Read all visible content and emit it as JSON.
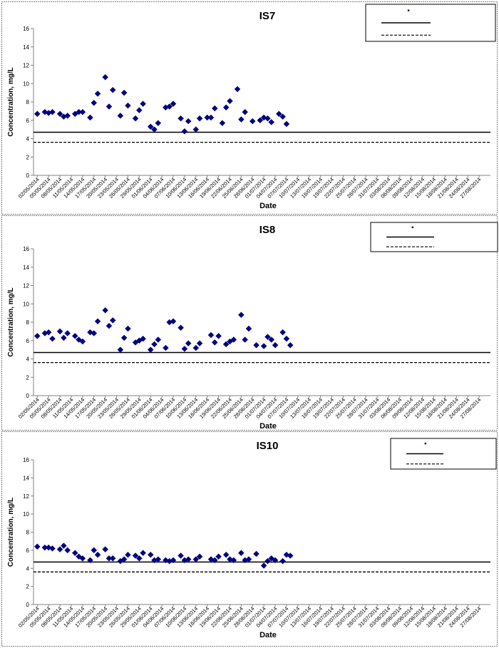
{
  "colors": {
    "marker": "#000080",
    "axis": "#808080",
    "reference_line": "#000000",
    "panel_border": "#000000"
  },
  "chart_data": [
    {
      "type": "scatter",
      "title": "IS7",
      "xlabel": "Date",
      "ylabel": "Concentration, mg/L",
      "ylim": [
        0,
        16
      ],
      "yticks": [
        0,
        2,
        4,
        6,
        8,
        10,
        12,
        14,
        16
      ],
      "xlim": [
        "2014-05-01",
        "2014-08-30"
      ],
      "xtick_labels": [
        "02/05/2014",
        "05/05/2014",
        "08/05/2014",
        "11/05/2014",
        "14/05/2014",
        "17/05/2014",
        "20/05/2014",
        "23/05/2014",
        "26/05/2014",
        "29/05/2014",
        "01/06/2014",
        "04/06/2014",
        "07/06/2014",
        "10/06/2014",
        "13/06/2014",
        "16/06/2014",
        "19/06/2014",
        "22/06/2014",
        "25/06/2014",
        "28/06/2014",
        "01/07/2014",
        "04/07/2014",
        "07/07/2014",
        "10/07/2014",
        "13/07/2014",
        "16/07/2014",
        "19/07/2014",
        "22/07/2014",
        "25/07/2014",
        "28/07/2014",
        "31/07/2014",
        "03/08/2014",
        "06/08/2014",
        "09/08/2014",
        "12/08/2014",
        "15/08/2014",
        "18/08/2014",
        "21/08/2014",
        "24/08/2014",
        "27/08/2014"
      ],
      "grid": false,
      "legend": "top-right",
      "reference_lines": [
        {
          "y": 4.7,
          "style": "solid"
        },
        {
          "y": 3.6,
          "style": "dashed"
        }
      ],
      "series": [
        {
          "points": [
            [
              "2014-05-02",
              6.7
            ],
            [
              "2014-05-04",
              6.9
            ],
            [
              "2014-05-05",
              6.8
            ],
            [
              "2014-05-06",
              6.9
            ],
            [
              "2014-05-08",
              6.7
            ],
            [
              "2014-05-09",
              6.4
            ],
            [
              "2014-05-10",
              6.5
            ],
            [
              "2014-05-12",
              6.7
            ],
            [
              "2014-05-13",
              6.9
            ],
            [
              "2014-05-14",
              6.9
            ],
            [
              "2014-05-16",
              6.3
            ],
            [
              "2014-05-17",
              7.9
            ],
            [
              "2014-05-18",
              8.9
            ],
            [
              "2014-05-20",
              10.7
            ],
            [
              "2014-05-21",
              7.5
            ],
            [
              "2014-05-22",
              9.3
            ],
            [
              "2014-05-24",
              6.5
            ],
            [
              "2014-05-25",
              9.0
            ],
            [
              "2014-05-26",
              7.6
            ],
            [
              "2014-05-28",
              6.2
            ],
            [
              "2014-05-29",
              7.1
            ],
            [
              "2014-05-30",
              7.8
            ],
            [
              "2014-06-01",
              5.3
            ],
            [
              "2014-06-02",
              5.0
            ],
            [
              "2014-06-03",
              5.7
            ],
            [
              "2014-06-05",
              7.4
            ],
            [
              "2014-06-06",
              7.5
            ],
            [
              "2014-06-07",
              7.8
            ],
            [
              "2014-06-09",
              6.2
            ],
            [
              "2014-06-10",
              4.8
            ],
            [
              "2014-06-11",
              5.9
            ],
            [
              "2014-06-13",
              5.0
            ],
            [
              "2014-06-14",
              6.2
            ],
            [
              "2014-06-16",
              6.3
            ],
            [
              "2014-06-17",
              6.3
            ],
            [
              "2014-06-18",
              7.3
            ],
            [
              "2014-06-20",
              5.7
            ],
            [
              "2014-06-21",
              7.4
            ],
            [
              "2014-06-22",
              8.1
            ],
            [
              "2014-06-24",
              9.4
            ],
            [
              "2014-06-25",
              6.1
            ],
            [
              "2014-06-26",
              6.9
            ],
            [
              "2014-06-28",
              5.9
            ],
            [
              "2014-06-30",
              6.0
            ],
            [
              "2014-07-01",
              6.3
            ],
            [
              "2014-07-02",
              6.2
            ],
            [
              "2014-07-03",
              5.8
            ],
            [
              "2014-07-05",
              6.7
            ],
            [
              "2014-07-06",
              6.4
            ],
            [
              "2014-07-07",
              5.6
            ]
          ]
        }
      ]
    },
    {
      "type": "scatter",
      "title": "IS8",
      "xlabel": "Date",
      "ylabel": "Concentration, mg/L",
      "ylim": [
        0,
        16
      ],
      "yticks": [
        0,
        2,
        4,
        6,
        8,
        10,
        12,
        14,
        16
      ],
      "xlim": [
        "2014-05-01",
        "2014-08-30"
      ],
      "xtick_labels": [
        "02/05/2014",
        "05/05/2014",
        "08/05/2014",
        "11/05/2014",
        "14/05/2014",
        "17/05/2014",
        "20/05/2014",
        "23/05/2014",
        "26/05/2014",
        "29/05/2014",
        "01/06/2014",
        "04/06/2014",
        "07/06/2014",
        "10/06/2014",
        "13/06/2014",
        "16/06/2014",
        "19/06/2014",
        "22/06/2014",
        "25/06/2014",
        "28/06/2014",
        "01/07/2014",
        "04/07/2014",
        "07/07/2014",
        "10/07/2014",
        "13/07/2014",
        "16/07/2014",
        "19/07/2014",
        "22/07/2014",
        "25/07/2014",
        "28/07/2014",
        "31/07/2014",
        "03/08/2014",
        "06/08/2014",
        "09/08/2014",
        "12/08/2014",
        "15/08/2014",
        "18/08/2014",
        "21/08/2014",
        "24/08/2014",
        "27/08/2014"
      ],
      "grid": false,
      "legend": "top-right",
      "reference_lines": [
        {
          "y": 4.7,
          "style": "solid"
        },
        {
          "y": 3.6,
          "style": "dashed"
        }
      ],
      "series": [
        {
          "points": [
            [
              "2014-05-02",
              6.5
            ],
            [
              "2014-05-04",
              6.8
            ],
            [
              "2014-05-05",
              6.9
            ],
            [
              "2014-05-06",
              6.2
            ],
            [
              "2014-05-08",
              7.0
            ],
            [
              "2014-05-09",
              6.3
            ],
            [
              "2014-05-10",
              6.8
            ],
            [
              "2014-05-12",
              6.5
            ],
            [
              "2014-05-13",
              6.1
            ],
            [
              "2014-05-14",
              5.9
            ],
            [
              "2014-05-16",
              6.9
            ],
            [
              "2014-05-17",
              6.8
            ],
            [
              "2014-05-18",
              8.1
            ],
            [
              "2014-05-20",
              9.3
            ],
            [
              "2014-05-21",
              7.6
            ],
            [
              "2014-05-22",
              8.2
            ],
            [
              "2014-05-24",
              5.0
            ],
            [
              "2014-05-25",
              6.3
            ],
            [
              "2014-05-26",
              7.3
            ],
            [
              "2014-05-28",
              5.8
            ],
            [
              "2014-05-29",
              6.0
            ],
            [
              "2014-05-30",
              6.2
            ],
            [
              "2014-06-01",
              5.0
            ],
            [
              "2014-06-02",
              5.6
            ],
            [
              "2014-06-03",
              6.1
            ],
            [
              "2014-06-05",
              5.2
            ],
            [
              "2014-06-06",
              8.0
            ],
            [
              "2014-06-07",
              8.1
            ],
            [
              "2014-06-09",
              7.4
            ],
            [
              "2014-06-10",
              5.1
            ],
            [
              "2014-06-11",
              5.7
            ],
            [
              "2014-06-13",
              5.2
            ],
            [
              "2014-06-14",
              5.7
            ],
            [
              "2014-06-17",
              6.6
            ],
            [
              "2014-06-18",
              5.8
            ],
            [
              "2014-06-19",
              6.5
            ],
            [
              "2014-06-21",
              5.6
            ],
            [
              "2014-06-22",
              5.9
            ],
            [
              "2014-06-23",
              6.1
            ],
            [
              "2014-06-25",
              8.8
            ],
            [
              "2014-06-26",
              6.1
            ],
            [
              "2014-06-27",
              7.3
            ],
            [
              "2014-06-29",
              5.5
            ],
            [
              "2014-07-01",
              5.4
            ],
            [
              "2014-07-02",
              6.4
            ],
            [
              "2014-07-03",
              6.1
            ],
            [
              "2014-07-04",
              5.5
            ],
            [
              "2014-07-06",
              6.9
            ],
            [
              "2014-07-07",
              6.2
            ],
            [
              "2014-07-08",
              5.5
            ]
          ]
        }
      ]
    },
    {
      "type": "scatter",
      "title": "IS10",
      "xlabel": "Date",
      "ylabel": "Concentration, mg/L",
      "ylim": [
        0,
        16
      ],
      "yticks": [
        0,
        2,
        4,
        6,
        8,
        10,
        12,
        14,
        16
      ],
      "xlim": [
        "2014-05-01",
        "2014-08-30"
      ],
      "xtick_labels": [
        "02/05/2014",
        "05/05/2014",
        "08/05/2014",
        "11/05/2014",
        "14/05/2014",
        "17/05/2014",
        "20/05/2014",
        "23/05/2014",
        "26/05/2014",
        "29/05/2014",
        "01/06/2014",
        "04/06/2014",
        "07/06/2014",
        "10/06/2014",
        "13/06/2014",
        "16/06/2014",
        "19/06/2014",
        "22/06/2014",
        "25/06/2014",
        "28/06/2014",
        "01/07/2014",
        "04/07/2014",
        "07/07/2014",
        "10/07/2014",
        "13/07/2014",
        "16/07/2014",
        "19/07/2014",
        "22/07/2014",
        "25/07/2014",
        "28/07/2014",
        "31/07/2014",
        "03/08/2014",
        "06/08/2014",
        "09/08/2014",
        "12/08/2014",
        "15/08/2014",
        "18/08/2014",
        "21/08/2014",
        "24/08/2014",
        "27/08/2014"
      ],
      "grid": false,
      "legend": "top-right",
      "reference_lines": [
        {
          "y": 4.7,
          "style": "solid"
        },
        {
          "y": 3.6,
          "style": "dashed"
        }
      ],
      "series": [
        {
          "points": [
            [
              "2014-05-02",
              6.4
            ],
            [
              "2014-05-04",
              6.3
            ],
            [
              "2014-05-05",
              6.3
            ],
            [
              "2014-05-06",
              6.2
            ],
            [
              "2014-05-08",
              6.1
            ],
            [
              "2014-05-09",
              6.5
            ],
            [
              "2014-05-10",
              6.0
            ],
            [
              "2014-05-12",
              5.7
            ],
            [
              "2014-05-13",
              5.3
            ],
            [
              "2014-05-14",
              5.1
            ],
            [
              "2014-05-16",
              4.9
            ],
            [
              "2014-05-17",
              6.0
            ],
            [
              "2014-05-18",
              5.5
            ],
            [
              "2014-05-20",
              6.1
            ],
            [
              "2014-05-21",
              5.1
            ],
            [
              "2014-05-22",
              5.1
            ],
            [
              "2014-05-24",
              4.8
            ],
            [
              "2014-05-25",
              5.0
            ],
            [
              "2014-05-26",
              5.5
            ],
            [
              "2014-05-28",
              5.4
            ],
            [
              "2014-05-29",
              5.1
            ],
            [
              "2014-05-30",
              5.7
            ],
            [
              "2014-06-01",
              5.5
            ],
            [
              "2014-06-02",
              4.9
            ],
            [
              "2014-06-03",
              5.0
            ],
            [
              "2014-06-05",
              4.9
            ],
            [
              "2014-06-06",
              4.8
            ],
            [
              "2014-06-07",
              4.9
            ],
            [
              "2014-06-09",
              5.4
            ],
            [
              "2014-06-10",
              4.9
            ],
            [
              "2014-06-11",
              5.0
            ],
            [
              "2014-06-13",
              5.0
            ],
            [
              "2014-06-14",
              5.3
            ],
            [
              "2014-06-17",
              5.0
            ],
            [
              "2014-06-18",
              4.9
            ],
            [
              "2014-06-19",
              5.3
            ],
            [
              "2014-06-21",
              5.5
            ],
            [
              "2014-06-22",
              5.0
            ],
            [
              "2014-06-23",
              4.9
            ],
            [
              "2014-06-25",
              5.7
            ],
            [
              "2014-06-26",
              4.9
            ],
            [
              "2014-06-27",
              5.0
            ],
            [
              "2014-06-29",
              5.6
            ],
            [
              "2014-07-01",
              4.3
            ],
            [
              "2014-07-02",
              4.8
            ],
            [
              "2014-07-03",
              5.1
            ],
            [
              "2014-07-04",
              4.9
            ],
            [
              "2014-07-06",
              4.8
            ],
            [
              "2014-07-07",
              5.5
            ],
            [
              "2014-07-08",
              5.4
            ]
          ]
        }
      ]
    }
  ]
}
